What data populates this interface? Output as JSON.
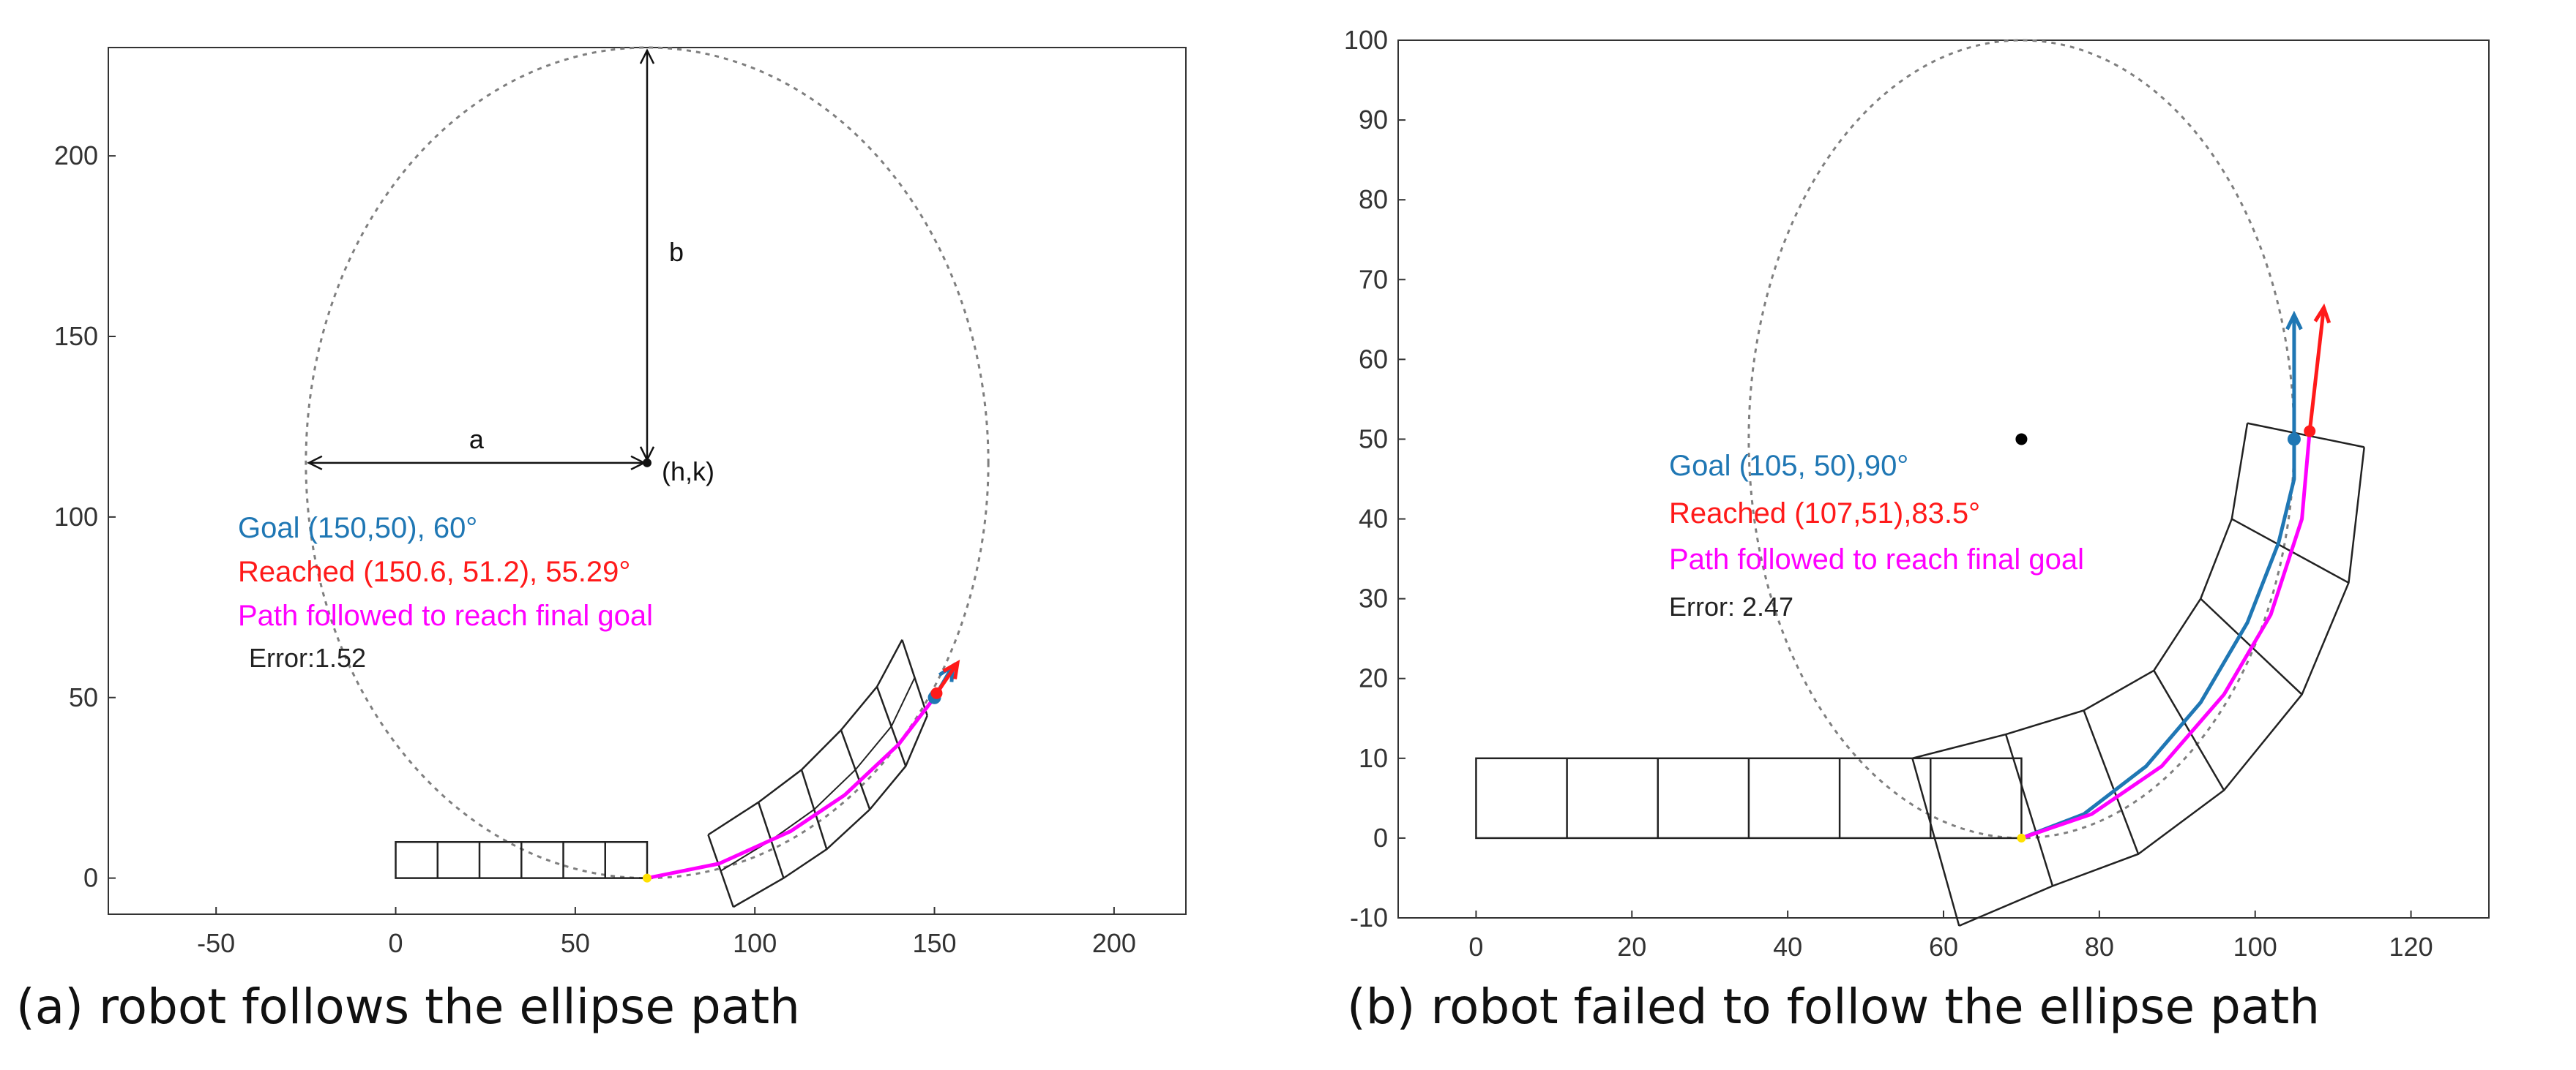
{
  "colors": {
    "goal": "#1f77b4",
    "reached": "#ff1a1a",
    "path": "#ff00ff",
    "ellipse": "#7f7f7f",
    "robot": "#222222",
    "start": "#ffe000"
  },
  "panels": [
    {
      "caption": "(a) robot follows the ellipse path",
      "chart_data": {
        "type": "line",
        "xlim": [
          -80,
          220
        ],
        "ylim": [
          -10,
          230
        ],
        "xticks": [
          -50,
          0,
          50,
          100,
          150,
          200
        ],
        "yticks": [
          0,
          50,
          100,
          150,
          200
        ],
        "grid": false,
        "ellipse": {
          "h": 70,
          "k": 115,
          "a": 95,
          "b": 115
        },
        "start_point": [
          70,
          0
        ],
        "center_label": "(h,k)",
        "a_label": "a",
        "b_label": "b",
        "path_followed": {
          "x": [
            70,
            90,
            110,
            125,
            140,
            150,
            155
          ],
          "y": [
            0,
            4,
            13,
            23,
            37,
            50,
            58
          ]
        },
        "goal": {
          "x": 150,
          "y": 50,
          "angle": 60
        },
        "reached": {
          "x": 150.6,
          "y": 51.2,
          "angle": 55.29
        },
        "robot_base": {
          "x": [
            0,
            70
          ],
          "y": [
            0,
            10
          ],
          "segments": 6
        },
        "robot_arm": {
          "inner": {
            "x": [
              94,
              108,
              120,
              132,
              142,
              148
            ],
            "y": [
              -8,
              0,
              8,
              19,
              31,
              45
            ]
          },
          "outer": {
            "x": [
              87,
              101,
              113,
              124,
              134,
              141
            ],
            "y": [
              12,
              21,
              30,
              41,
              53,
              66
            ]
          }
        },
        "annotations": [
          {
            "id": "goal",
            "text": "Goal (150,50), 60°"
          },
          {
            "id": "reached",
            "text": "Reached (150.6, 51.2), 55.29°"
          },
          {
            "id": "path",
            "text": "Path followed to reach final goal"
          },
          {
            "id": "error",
            "text": "Error:1.52"
          }
        ]
      }
    },
    {
      "caption": "(b) robot failed to follow the ellipse path",
      "chart_data": {
        "type": "line",
        "xlim": [
          -10,
          130
        ],
        "ylim": [
          -10,
          100
        ],
        "xticks": [
          0,
          20,
          40,
          60,
          80,
          100,
          120
        ],
        "yticks": [
          -10,
          0,
          10,
          20,
          30,
          40,
          50,
          60,
          70,
          80,
          90,
          100
        ],
        "grid": false,
        "ellipse": {
          "h": 70,
          "k": 50,
          "a": 35,
          "b": 50
        },
        "start_point": [
          70,
          0
        ],
        "center_point": [
          70,
          50
        ],
        "goal_path": {
          "x": [
            70,
            78,
            86,
            93,
            99,
            103,
            105,
            105
          ],
          "y": [
            0,
            3,
            9,
            17,
            27,
            37,
            45,
            50
          ]
        },
        "path_followed": {
          "x": [
            70,
            79,
            88,
            96,
            102,
            106,
            107
          ],
          "y": [
            0,
            3,
            9,
            18,
            28,
            40,
            51
          ]
        },
        "goal": {
          "x": 105,
          "y": 50,
          "angle": 90
        },
        "reached": {
          "x": 107,
          "y": 51,
          "angle": 83.5
        },
        "robot_base": {
          "x": [
            0,
            70
          ],
          "y": [
            0,
            10
          ],
          "segments": 6
        },
        "robot_arm": {
          "inner": {
            "x": [
              62,
              74,
              85,
              96,
              106,
              112,
              114
            ],
            "y": [
              -11,
              -6,
              -2,
              6,
              18,
              32,
              49
            ]
          },
          "outer": {
            "x": [
              56,
              68,
              78,
              87,
              93,
              97,
              99
            ],
            "y": [
              10,
              13,
              16,
              21,
              30,
              40,
              52
            ]
          }
        },
        "annotations": [
          {
            "id": "goal",
            "text": "Goal (105, 50),90°"
          },
          {
            "id": "reached",
            "text": "Reached (107,51),83.5°"
          },
          {
            "id": "path",
            "text": "Path followed to reach final goal"
          },
          {
            "id": "error",
            "text": "Error: 2.47"
          }
        ]
      }
    }
  ]
}
